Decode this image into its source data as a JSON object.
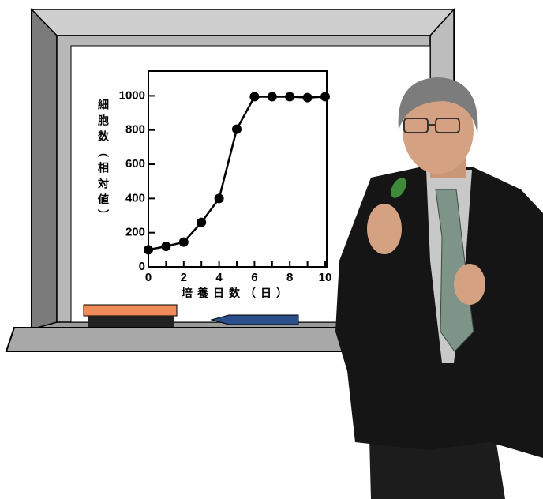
{
  "chart_data": {
    "type": "line",
    "x_label": "培養日数（日）",
    "y_label": "細胞数（相対値）",
    "x": [
      0,
      1,
      2,
      3,
      4,
      5,
      6,
      7,
      8,
      9,
      10
    ],
    "values": [
      100,
      120,
      145,
      260,
      400,
      805,
      995,
      995,
      995,
      990,
      995
    ],
    "color": "#000000",
    "xlim": [
      0,
      10
    ],
    "xticks": [
      0,
      2,
      4,
      6,
      8,
      10
    ],
    "xminorticks": [
      1,
      3,
      5,
      7,
      9
    ],
    "ylim": [
      0,
      1145
    ],
    "yticks": [
      0,
      200,
      400,
      600,
      800,
      1000
    ]
  }
}
